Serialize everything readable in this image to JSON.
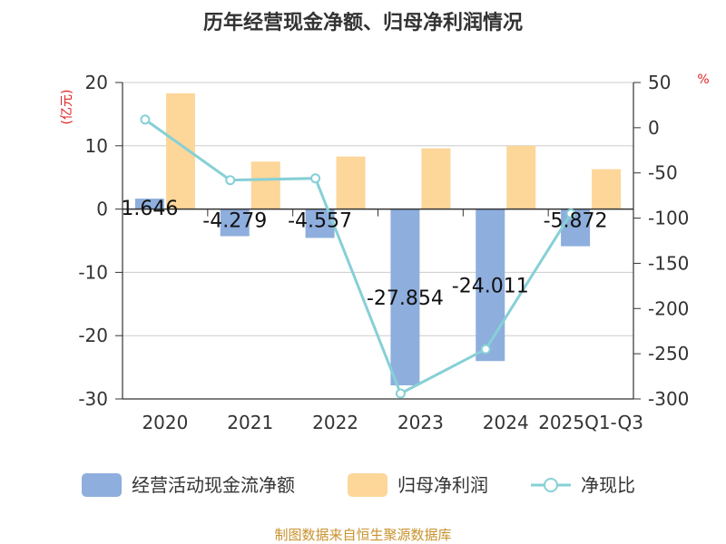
{
  "chart_data": {
    "type": "bar-line-combo",
    "title": "历年经营现金净额、归母净利润情况",
    "categories": [
      "2020",
      "2021",
      "2022",
      "2023",
      "2024",
      "2025Q1-Q3"
    ],
    "left_axis": {
      "unit": "(亿元)",
      "range": [
        -30,
        20
      ],
      "ticks": [
        20,
        10,
        0,
        -10,
        -20,
        -30
      ]
    },
    "right_axis": {
      "unit": "%",
      "range": [
        -300,
        50
      ],
      "ticks": [
        50,
        0,
        -50,
        -100,
        -150,
        -200,
        -250,
        -300
      ]
    },
    "series": [
      {
        "name": "经营活动现金流净额",
        "kind": "bar",
        "axis": "left",
        "color": "#8eaedd",
        "values": [
          1.646,
          -4.279,
          -4.557,
          -27.854,
          -24.011,
          -5.872
        ],
        "labels": [
          "1.646",
          "-4.279",
          "-4.557",
          "-27.854",
          "-24.011",
          "-5.872"
        ]
      },
      {
        "name": "归母净利润",
        "kind": "bar",
        "axis": "left",
        "color": "#fdd699",
        "values": [
          18.3,
          7.5,
          8.3,
          9.6,
          10.0,
          6.3
        ]
      },
      {
        "name": "净现比",
        "kind": "line",
        "axis": "right",
        "color": "#86d0d6",
        "values": [
          9,
          -58,
          -56,
          -294,
          -245,
          -95
        ]
      }
    ]
  },
  "source": "制图数据来自恒生聚源数据库"
}
